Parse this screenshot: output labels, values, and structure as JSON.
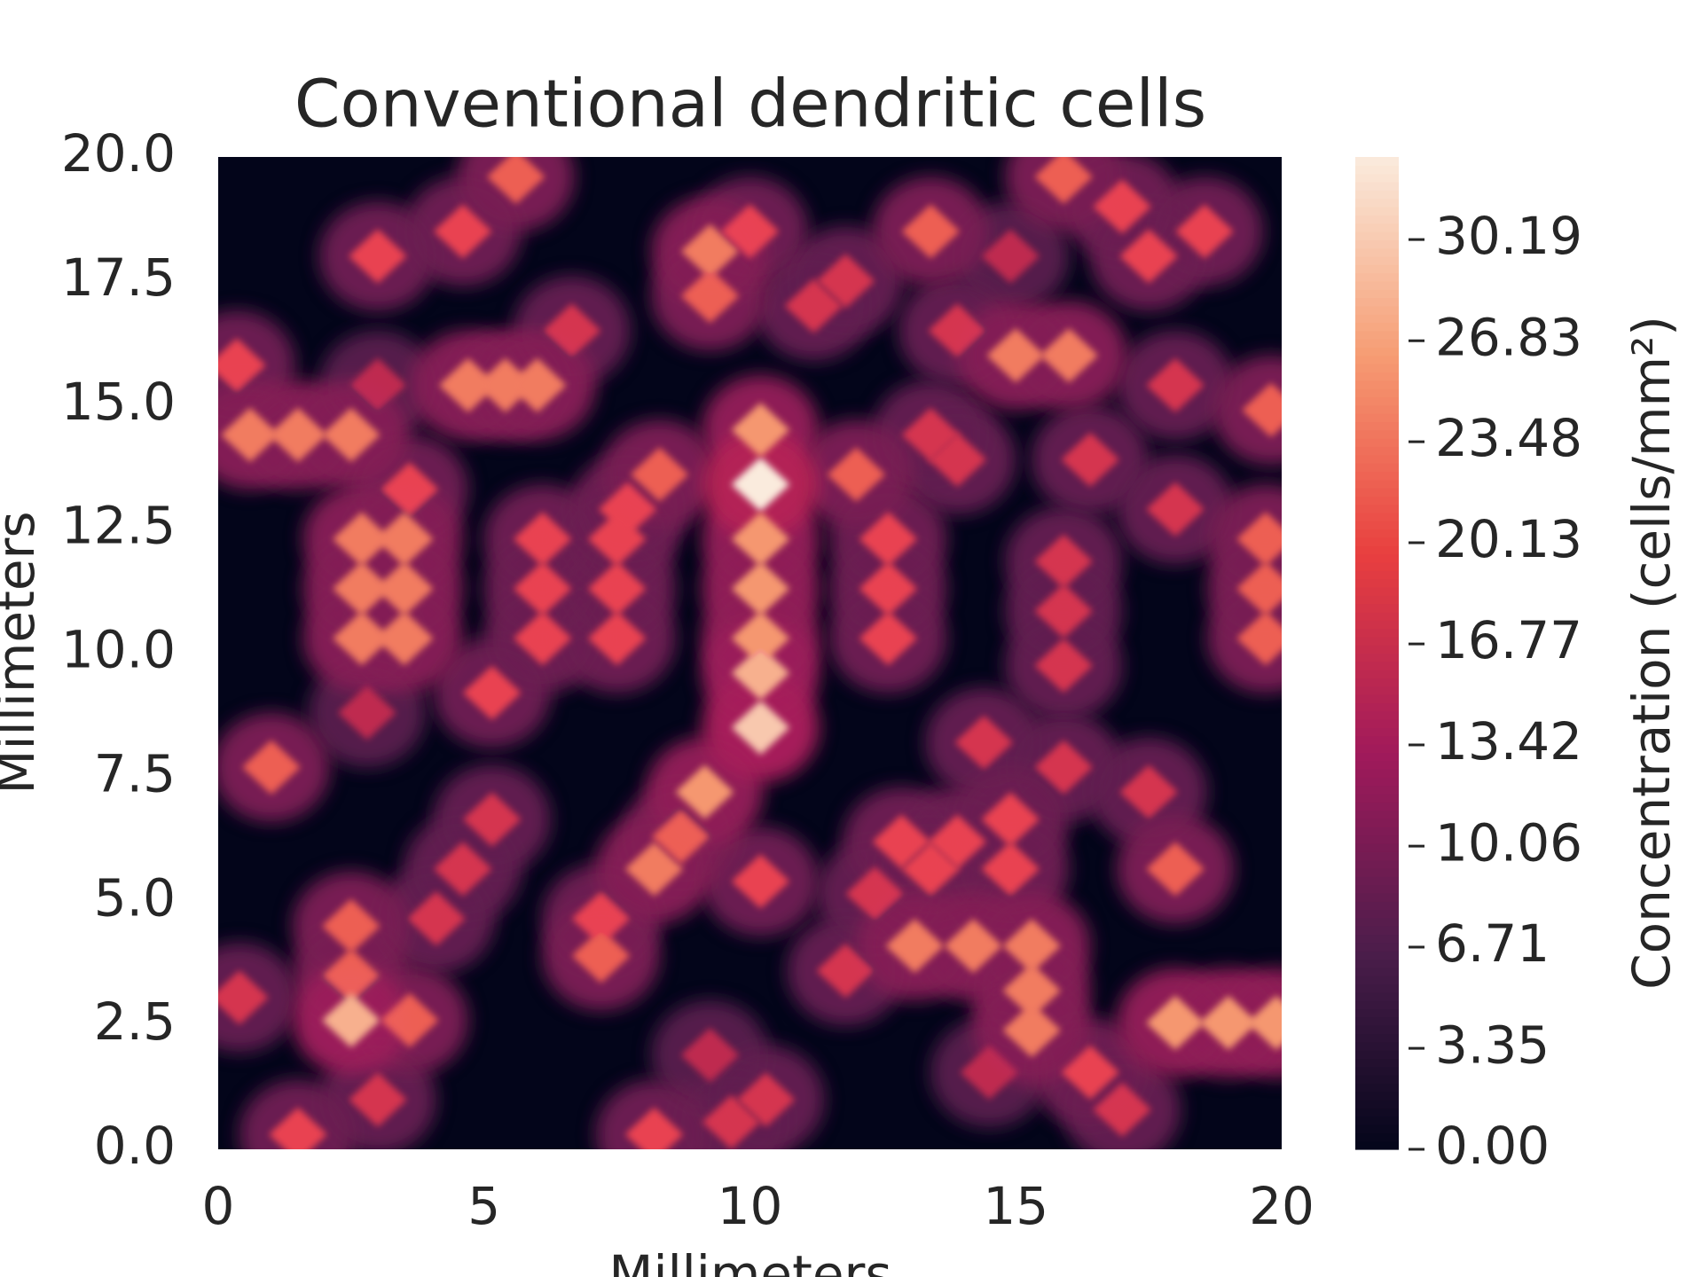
{
  "chart_data": {
    "type": "contour",
    "title": "Conventional dendritic cells",
    "xlabel": "Millimeters",
    "ylabel": "Millimeters",
    "colorbar_label": "Concentration (cells/mm²)",
    "xlim": [
      0,
      20
    ],
    "ylim": [
      0,
      20
    ],
    "xticks": [
      0,
      5,
      10,
      15,
      20
    ],
    "yticks": [
      {
        "value": 0,
        "label": "0.0"
      },
      2.5,
      {
        "value": 5,
        "label": "5.0"
      },
      7.5,
      {
        "value": 10,
        "label": "10.0"
      },
      12.5,
      {
        "value": 15,
        "label": "15.0"
      },
      17.5,
      {
        "value": 20,
        "label": "20.0"
      }
    ],
    "clim": [
      0,
      32.93
    ],
    "cticks": [
      {
        "value": 0,
        "label": "0.00"
      },
      3.35,
      6.71,
      10.06,
      13.42,
      16.77,
      20.13,
      23.48,
      26.83,
      30.19
    ],
    "colormap": [
      "#03051a",
      "#4c1d4b",
      "#a11a5b",
      "#e83f3f",
      "#f69c73",
      "#faebdd"
    ],
    "x": [
      5.6,
      3.0,
      4.6,
      6.65,
      3.0,
      4.7,
      5.4,
      6.0,
      0.35,
      0.6,
      1.5,
      2.5,
      3.6,
      2.7,
      3.5,
      2.7,
      3.5,
      2.7,
      3.5,
      2.8,
      1.0,
      5.15,
      5.15,
      4.6,
      4.1,
      0.4,
      2.5,
      2.5,
      2.5,
      3.6,
      3.0,
      1.5,
      8.2,
      9.65,
      10.3,
      9.25,
      7.2,
      7.2,
      8.2,
      8.7,
      10.2,
      9.15,
      10.2,
      10.2,
      10.2,
      8.3,
      12.0,
      10.2,
      6.1,
      7.5,
      10.2,
      12.6,
      6.1,
      7.5,
      10.2,
      12.6,
      6.1,
      7.5,
      10.2,
      12.6,
      7.7,
      9.25,
      9.25,
      10.0,
      11.2,
      11.8,
      13.4,
      14.9,
      13.9,
      15.0,
      16.0,
      15.9,
      17.0,
      17.5,
      18.55,
      18.0,
      19.8,
      16.4,
      13.4,
      13.9,
      18.0,
      15.9,
      15.9,
      15.9,
      19.7,
      19.7,
      19.7,
      14.4,
      15.9,
      17.5,
      12.85,
      13.9,
      13.4,
      14.9,
      14.9,
      12.35,
      18.0,
      11.8,
      13.1,
      14.2,
      15.3,
      15.3,
      15.3,
      16.4,
      17.0,
      14.5,
      18.0,
      19.0,
      19.9
    ],
    "y": [
      19.6,
      18.0,
      18.5,
      16.5,
      15.4,
      15.4,
      15.4,
      15.4,
      15.8,
      14.4,
      14.4,
      14.4,
      13.3,
      12.3,
      12.3,
      11.3,
      11.3,
      10.3,
      10.3,
      8.8,
      7.7,
      9.2,
      6.65,
      5.65,
      4.65,
      3.06,
      4.5,
      3.5,
      2.6,
      2.6,
      1.0,
      0.3,
      0.3,
      0.55,
      1.0,
      1.9,
      3.9,
      4.65,
      5.65,
      6.3,
      5.4,
      7.2,
      8.5,
      9.6,
      13.4,
      13.6,
      13.6,
      14.5,
      10.3,
      10.3,
      10.3,
      10.3,
      11.3,
      11.3,
      11.3,
      11.3,
      12.3,
      12.3,
      12.3,
      12.3,
      12.9,
      18.1,
      17.2,
      18.5,
      17.0,
      17.5,
      18.5,
      18.0,
      16.5,
      16.0,
      16.0,
      19.6,
      19.0,
      18.0,
      18.5,
      15.4,
      14.9,
      13.9,
      14.4,
      13.9,
      12.9,
      11.85,
      10.85,
      9.75,
      12.3,
      11.3,
      10.3,
      8.2,
      7.7,
      7.2,
      6.2,
      6.2,
      5.65,
      6.65,
      5.65,
      5.15,
      5.65,
      3.6,
      4.1,
      4.1,
      4.1,
      3.2,
      2.4,
      1.55,
      0.8,
      1.55,
      2.55,
      2.55,
      2.55
    ],
    "values": [
      22,
      20,
      20,
      18,
      16,
      24,
      24,
      24,
      20,
      24,
      24,
      24,
      20,
      24,
      24,
      24,
      24,
      24,
      24,
      16,
      22,
      20,
      18,
      18,
      18,
      18,
      22,
      22,
      28,
      22,
      18,
      20,
      20,
      18,
      18,
      16,
      22,
      20,
      24,
      22,
      20,
      26,
      30,
      28,
      33,
      22,
      22,
      26,
      20,
      20,
      26,
      20,
      20,
      20,
      26,
      20,
      20,
      20,
      26,
      20,
      20,
      24,
      22,
      20,
      18,
      18,
      22,
      16,
      18,
      24,
      24,
      22,
      20,
      20,
      20,
      18,
      22,
      18,
      18,
      18,
      18,
      18,
      18,
      18,
      22,
      22,
      22,
      18,
      18,
      18,
      20,
      20,
      20,
      20,
      20,
      18,
      22,
      18,
      24,
      24,
      24,
      24,
      24,
      20,
      18,
      16,
      26,
      26,
      26
    ]
  }
}
